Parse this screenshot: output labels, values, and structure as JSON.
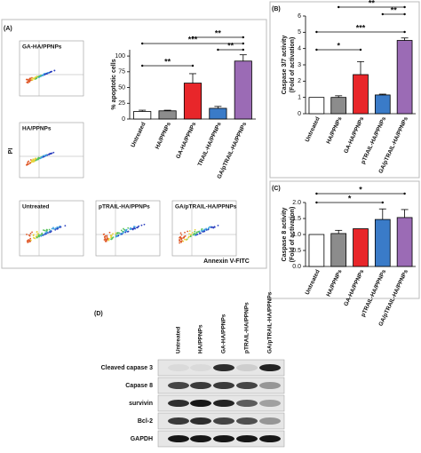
{
  "panels": [
    "(A)",
    "(B)",
    "(C)",
    "(D)"
  ],
  "flow": {
    "plots": [
      "GA-HA/PPNPs",
      "HA/PPNPs",
      "Untreated",
      "pTRAIL-HA/PPNPs",
      "GA/pTRAIL-HA/PPNPs"
    ],
    "y_label": "PI",
    "x_label": "Annexin V-FITC"
  },
  "chart_data": [
    {
      "type": "bar",
      "y_label": "% apoptotic cells",
      "categories": [
        "Untreated",
        "HA/PPNPs",
        "GA-HA/PPNPs",
        "TRAIL-HA/PPNPs",
        "GA/pTRAIL-HA/PPNPs"
      ],
      "values": [
        12,
        13,
        57,
        17,
        92
      ],
      "errors": [
        2,
        1,
        15,
        3,
        10
      ],
      "colors": [
        "#ffffff",
        "#8c8c8c",
        "#e8262a",
        "#3a7bc8",
        "#9b6bb5"
      ],
      "ylim": [
        0,
        110
      ],
      "yticks": [
        0,
        25,
        50,
        75,
        100
      ],
      "annotations": [
        "**",
        "***",
        "**",
        "**"
      ]
    },
    {
      "type": "bar",
      "y_label": "Caspase 3/7 activity",
      "y_label2": "(Fold of activation)",
      "categories": [
        "Untreated",
        "HA/PPNPs",
        "GA-HA/PPNPs",
        "pTRAIL-HA/PPNPs",
        "GA/pTRAIL-HA/PPNPs"
      ],
      "values": [
        1,
        1,
        2.4,
        1.15,
        4.5
      ],
      "errors": [
        0,
        0.1,
        0.8,
        0.05,
        0.15
      ],
      "colors": [
        "#ffffff",
        "#8c8c8c",
        "#e8262a",
        "#3a7bc8",
        "#9b6bb5"
      ],
      "ylim": [
        0,
        6
      ],
      "yticks": [
        0,
        1,
        2,
        3,
        4,
        5,
        6
      ],
      "annotations": [
        "**",
        "**",
        "***",
        "*"
      ]
    },
    {
      "type": "bar",
      "y_label": "Caspase 8 activity",
      "y_label2": "(Fold of activation)",
      "categories": [
        "Untreated",
        "HA/PPNPs",
        "GA-HA/PPNPs",
        "pTRAIL-HA/PPNPs",
        "GA/pTRAIL-HA/PPNPs"
      ],
      "values": [
        1,
        1.03,
        1.18,
        1.47,
        1.53
      ],
      "errors": [
        0,
        0.1,
        0,
        0.33,
        0.25
      ],
      "colors": [
        "#ffffff",
        "#8c8c8c",
        "#e8262a",
        "#3a7bc8",
        "#9b6bb5"
      ],
      "ylim": [
        0,
        2
      ],
      "yticks": [
        {
          "value": 0,
          "label": "0.0"
        },
        {
          "value": 0.5,
          "label": "0.5"
        },
        {
          "value": 1,
          "label": "1.0"
        },
        {
          "value": 1.5,
          "label": "1.5"
        },
        {
          "value": 2,
          "label": "2.0"
        }
      ],
      "annotations": [
        "*",
        "*"
      ]
    }
  ],
  "blot": {
    "columns": [
      "Untreated",
      "HA/PPNPs",
      "GA-HA/PPNPs",
      "pTRAIL-HA/PPNPs",
      "GA/pTRAIL-HA/PPNPs"
    ],
    "rows": [
      "Cleaved capase 3",
      "Capase 8",
      "survivin",
      "Bcl-2",
      "GAPDH"
    ]
  }
}
